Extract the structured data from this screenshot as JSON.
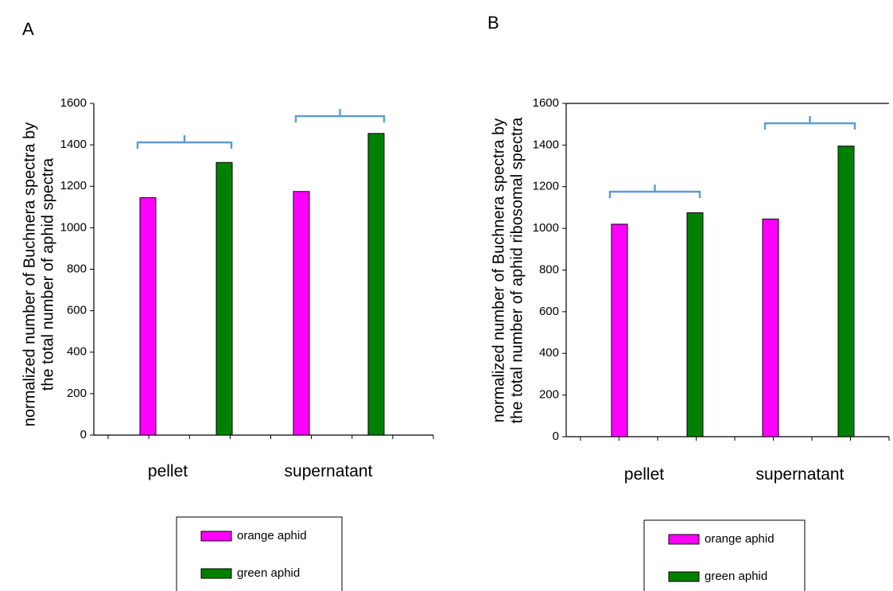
{
  "panels": [
    {
      "label": "A"
    },
    {
      "label": "B"
    }
  ],
  "chart_data": [
    {
      "type": "bar",
      "title": "",
      "ylabel": "normalized number of Buchnera spectra by the total number of aphid spectra",
      "ylabel_lines": [
        "normalized number of Buchnera spectra by",
        "the total number of aphid spectra"
      ],
      "xlabel": "",
      "categories": [
        "pellet",
        "supernatant"
      ],
      "series": [
        {
          "name": "orange aphid",
          "values": [
            1145,
            1175
          ],
          "color": "#ff00ff"
        },
        {
          "name": "green aphid",
          "values": [
            1315,
            1455
          ],
          "color": "#008000"
        }
      ],
      "ylim": [
        0,
        1600
      ],
      "yticks": [
        "0",
        "200",
        "400",
        "600",
        "800",
        "1000",
        "1200",
        "1400",
        "1600"
      ],
      "grid": false,
      "legend_position": "bottom",
      "bracket_color": "#5b9bd5"
    },
    {
      "type": "bar",
      "title": "",
      "ylabel": "normalized number of Buchnera spectra by the total number of aphid ribosomal spectra",
      "ylabel_lines": [
        "normalized number of Buchnera spectra by",
        "the total number of aphid ribosomal spectra"
      ],
      "xlabel": "",
      "categories": [
        "pellet",
        "supernatant"
      ],
      "series": [
        {
          "name": "orange aphid",
          "values": [
            1020,
            1045
          ],
          "color": "#ff00ff"
        },
        {
          "name": "green aphid",
          "values": [
            1075,
            1395
          ],
          "color": "#008000"
        }
      ],
      "ylim": [
        0,
        1600
      ],
      "yticks": [
        "0",
        "200",
        "400",
        "600",
        "800",
        "1000",
        "1200",
        "1400",
        "1600"
      ],
      "grid": false,
      "legend_position": "bottom",
      "bracket_color": "#5b9bd5"
    }
  ]
}
